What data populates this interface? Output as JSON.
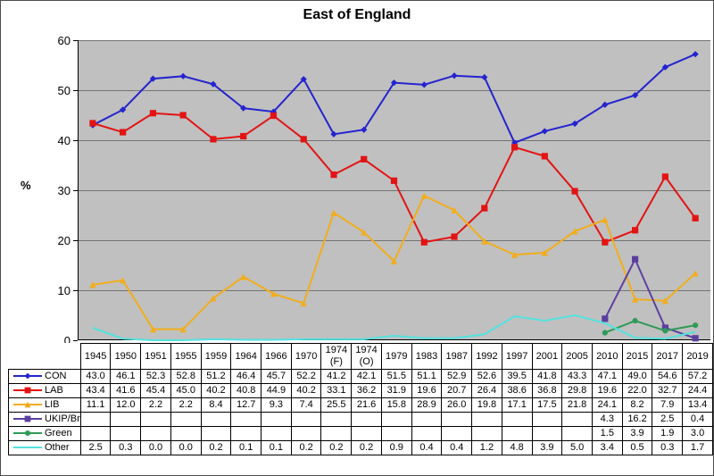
{
  "chart_data": {
    "type": "line",
    "title": "East of England",
    "ylabel": "%",
    "xlabel": "",
    "ylim": [
      0,
      60
    ],
    "yticks": [
      0,
      10,
      20,
      30,
      40,
      50,
      60
    ],
    "grid": "horizontal-only",
    "plot_background": "#c0c0c0",
    "gridline_color": "#737373",
    "axis_color": "#000000",
    "legend_position": "data-table-left-column",
    "categories": [
      "1945",
      "1950",
      "1951",
      "1955",
      "1959",
      "1964",
      "1966",
      "1970",
      "1974 (F)",
      "1974 (O)",
      "1979",
      "1983",
      "1987",
      "1992",
      "1997",
      "2001",
      "2005",
      "2010",
      "2015",
      "2017",
      "2019"
    ],
    "series": [
      {
        "name": "CON",
        "color": "#2424cf",
        "marker": "diamond",
        "values": [
          43.0,
          46.1,
          52.3,
          52.8,
          51.2,
          46.4,
          45.7,
          52.2,
          41.2,
          42.1,
          51.5,
          51.1,
          52.9,
          52.6,
          39.5,
          41.8,
          43.3,
          47.1,
          49.0,
          54.6,
          57.2
        ]
      },
      {
        "name": "LAB",
        "color": "#e31313",
        "marker": "square",
        "values": [
          43.4,
          41.6,
          45.4,
          45.0,
          40.2,
          40.8,
          44.9,
          40.2,
          33.1,
          36.2,
          31.9,
          19.6,
          20.7,
          26.4,
          38.6,
          36.8,
          29.8,
          19.6,
          22.0,
          32.7,
          24.4
        ]
      },
      {
        "name": "LIB",
        "color": "#f2ad1b",
        "marker": "triangle",
        "values": [
          11.1,
          12.0,
          2.2,
          2.2,
          8.4,
          12.7,
          9.3,
          7.4,
          25.5,
          21.6,
          15.8,
          28.9,
          26.0,
          19.8,
          17.1,
          17.5,
          21.8,
          24.1,
          8.2,
          7.9,
          13.4
        ]
      },
      {
        "name": "UKIP/Br",
        "color": "#5b3f9e",
        "marker": "square",
        "values": [
          null,
          null,
          null,
          null,
          null,
          null,
          null,
          null,
          null,
          null,
          null,
          null,
          null,
          null,
          null,
          null,
          null,
          4.3,
          16.2,
          2.5,
          0.4
        ]
      },
      {
        "name": "Green",
        "color": "#2e9b57",
        "marker": "circle",
        "values": [
          null,
          null,
          null,
          null,
          null,
          null,
          null,
          null,
          null,
          null,
          null,
          null,
          null,
          null,
          null,
          null,
          null,
          1.5,
          3.9,
          1.9,
          3.0
        ]
      },
      {
        "name": "Other",
        "color": "#53e2df",
        "marker": "none",
        "values": [
          2.5,
          0.3,
          0.0,
          0.0,
          0.2,
          0.1,
          0.1,
          0.2,
          0.2,
          0.2,
          0.9,
          0.4,
          0.4,
          1.2,
          4.8,
          3.9,
          5.0,
          3.4,
          0.5,
          0.3,
          1.7
        ]
      }
    ]
  }
}
